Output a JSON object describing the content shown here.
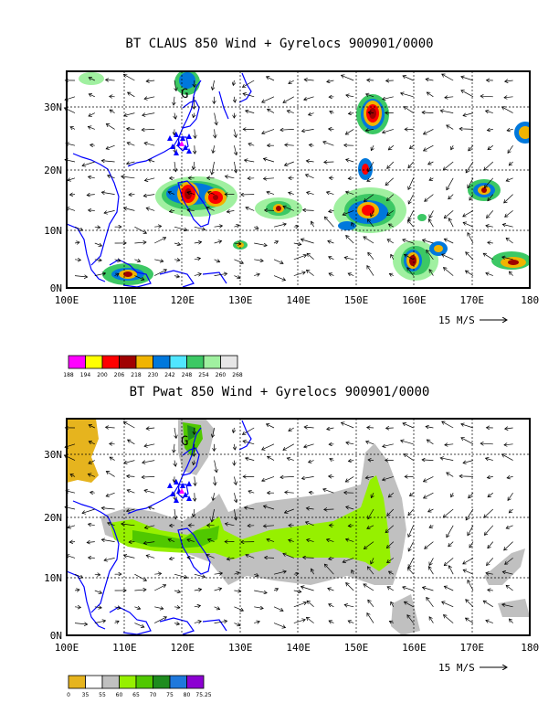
{
  "panel1": {
    "title": "BT CLAUS 850 Wind + Gyrelocs 900901/0000",
    "legend": {
      "colors": [
        "#ff00ff",
        "#ffff00",
        "#ff0000",
        "#a00000",
        "#f0b400",
        "#0078dc",
        "#50e6ff",
        "#3cc864",
        "#a0f0a0",
        "#e6e6e6"
      ],
      "labels": [
        "188",
        "194",
        "200",
        "206",
        "218",
        "230",
        "242",
        "248",
        "254",
        "260",
        "268"
      ]
    }
  },
  "panel2": {
    "title": "BT Pwat 850 Wind + Gyrelocs 900901/0000",
    "legend": {
      "colors": [
        "#e6b41e",
        "#ffffff",
        "#c0c0c0",
        "#96f000",
        "#50c800",
        "#1e8c1e",
        "#1e78dc",
        "#8c00d2"
      ],
      "labels": [
        "0",
        "35",
        "55",
        "60",
        "65",
        "70",
        "75",
        "80",
        "75.25"
      ]
    }
  },
  "axes": {
    "x_ticks": [
      "100E",
      "110E",
      "120E",
      "130E",
      "140E",
      "150E",
      "160E",
      "170E",
      "180"
    ],
    "y_ticks": [
      "0N",
      "10N",
      "20N",
      "30N"
    ],
    "x_range": [
      100,
      180
    ],
    "y_range": [
      0,
      35
    ]
  },
  "vector_label": "15 M/S",
  "colors": {
    "coast": "#0000ff",
    "frame": "#000000"
  }
}
